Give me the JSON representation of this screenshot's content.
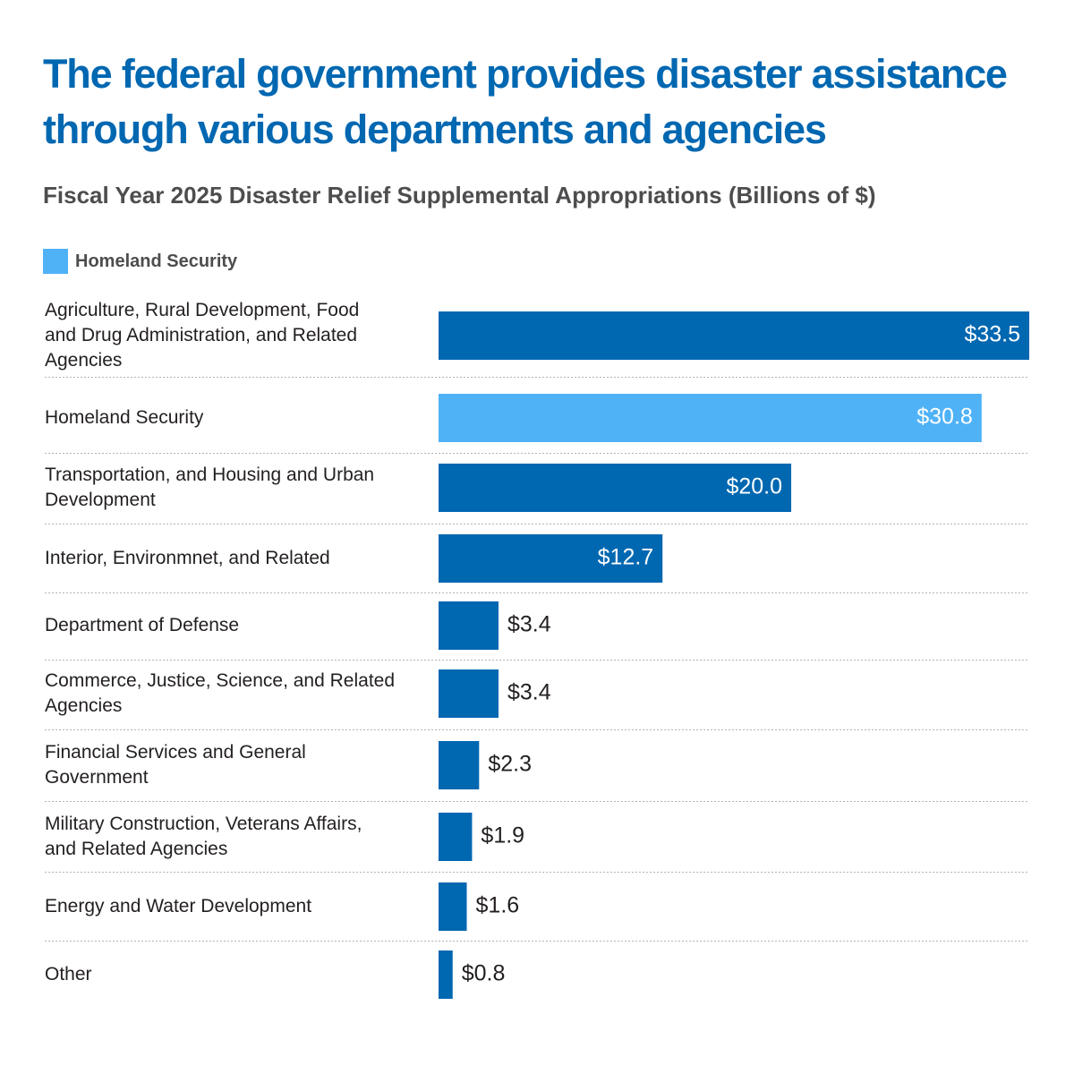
{
  "chart_data": {
    "type": "bar",
    "orientation": "horizontal",
    "title": "The federal government provides disaster assistance through various departments and agencies",
    "subtitle": "Fiscal Year 2025 Disaster Relief Supplemental Appropriations (Billions of $)",
    "legend": {
      "label": "Homeland Security",
      "color": "#4fb2f7",
      "placement": "top-left"
    },
    "colors": {
      "default": "#0067b1",
      "highlight": "#4fb2f7"
    },
    "xlim": [
      0,
      33.5
    ],
    "grid": false,
    "categories": [
      "Agriculture, Rural Development, Food and Drug Administration, and Related Agencies",
      "Homeland Security",
      "Transportation, and Housing and Urban Development",
      "Interior, Environmnet, and Related",
      "Department of Defense",
      "Commerce, Justice, Science, and Related Agencies",
      "Financial Services and General Government",
      "Military Construction, Veterans Affairs, and Related Agencies",
      "Energy and Water Development",
      "Other"
    ],
    "category_lines": [
      [
        "Agriculture, Rural Development, Food",
        "and Drug Administration, and Related",
        "Agencies"
      ],
      [
        "Homeland Security"
      ],
      [
        "Transportation, and Housing and Urban",
        "Development"
      ],
      [
        "Interior, Environmnet, and Related"
      ],
      [
        "Department of Defense"
      ],
      [
        "Commerce, Justice, Science, and Related",
        "Agencies"
      ],
      [
        "Financial Services and General",
        "Government"
      ],
      [
        "Military Construction, Veterans Affairs,",
        "and Related Agencies"
      ],
      [
        "Energy and Water Development"
      ],
      [
        "Other"
      ]
    ],
    "values": [
      33.5,
      30.8,
      20.0,
      12.7,
      3.4,
      3.4,
      2.3,
      1.9,
      1.6,
      0.8
    ],
    "value_labels": [
      "$33.5",
      "$30.8",
      "$20.0",
      "$12.7",
      "$3.4",
      "$3.4",
      "$2.3",
      "$1.9",
      "$1.6",
      "$0.8"
    ],
    "highlighted": [
      false,
      true,
      false,
      false,
      false,
      false,
      false,
      false,
      false,
      false
    ]
  }
}
